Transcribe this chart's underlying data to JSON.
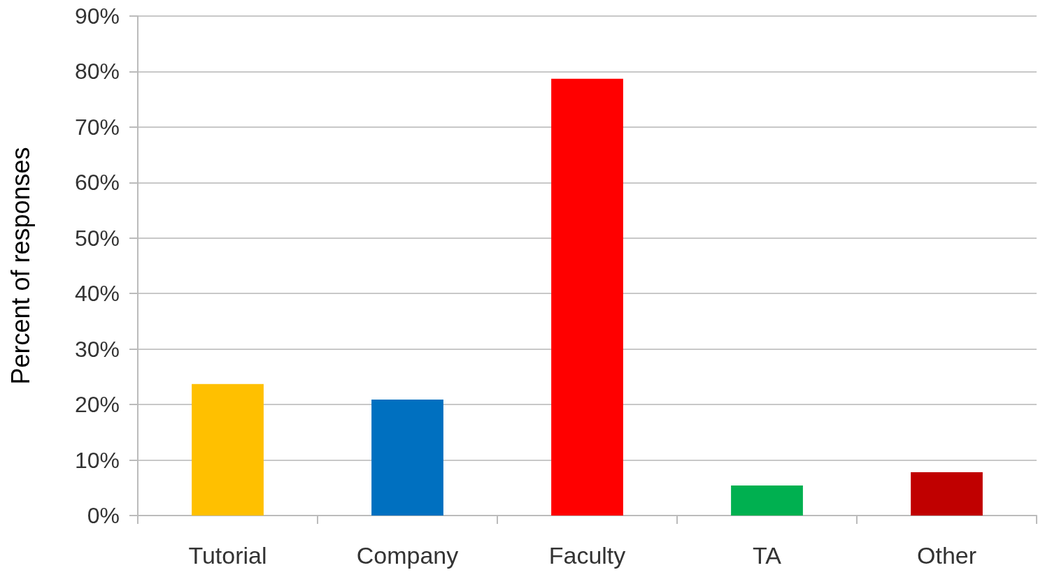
{
  "chart_data": {
    "type": "bar",
    "ylabel": "Percent of responses",
    "categories": [
      "Tutorial",
      "Company",
      "Faculty",
      "TA",
      "Other"
    ],
    "values": [
      23.7,
      20.9,
      78.7,
      5.4,
      7.8
    ],
    "colors": [
      "#ffc000",
      "#0070c0",
      "#ff0000",
      "#00b050",
      "#c00000"
    ],
    "ylim": [
      0,
      90
    ],
    "yticks": [
      {
        "value": 0,
        "label": "0%"
      },
      {
        "value": 10,
        "label": "10%"
      },
      {
        "value": 20,
        "label": "20%"
      },
      {
        "value": 30,
        "label": "30%"
      },
      {
        "value": 40,
        "label": "40%"
      },
      {
        "value": 50,
        "label": "50%"
      },
      {
        "value": 60,
        "label": "60%"
      },
      {
        "value": 70,
        "label": "70%"
      },
      {
        "value": 80,
        "label": "80%"
      },
      {
        "value": 90,
        "label": "90%"
      }
    ],
    "grid": "y"
  }
}
